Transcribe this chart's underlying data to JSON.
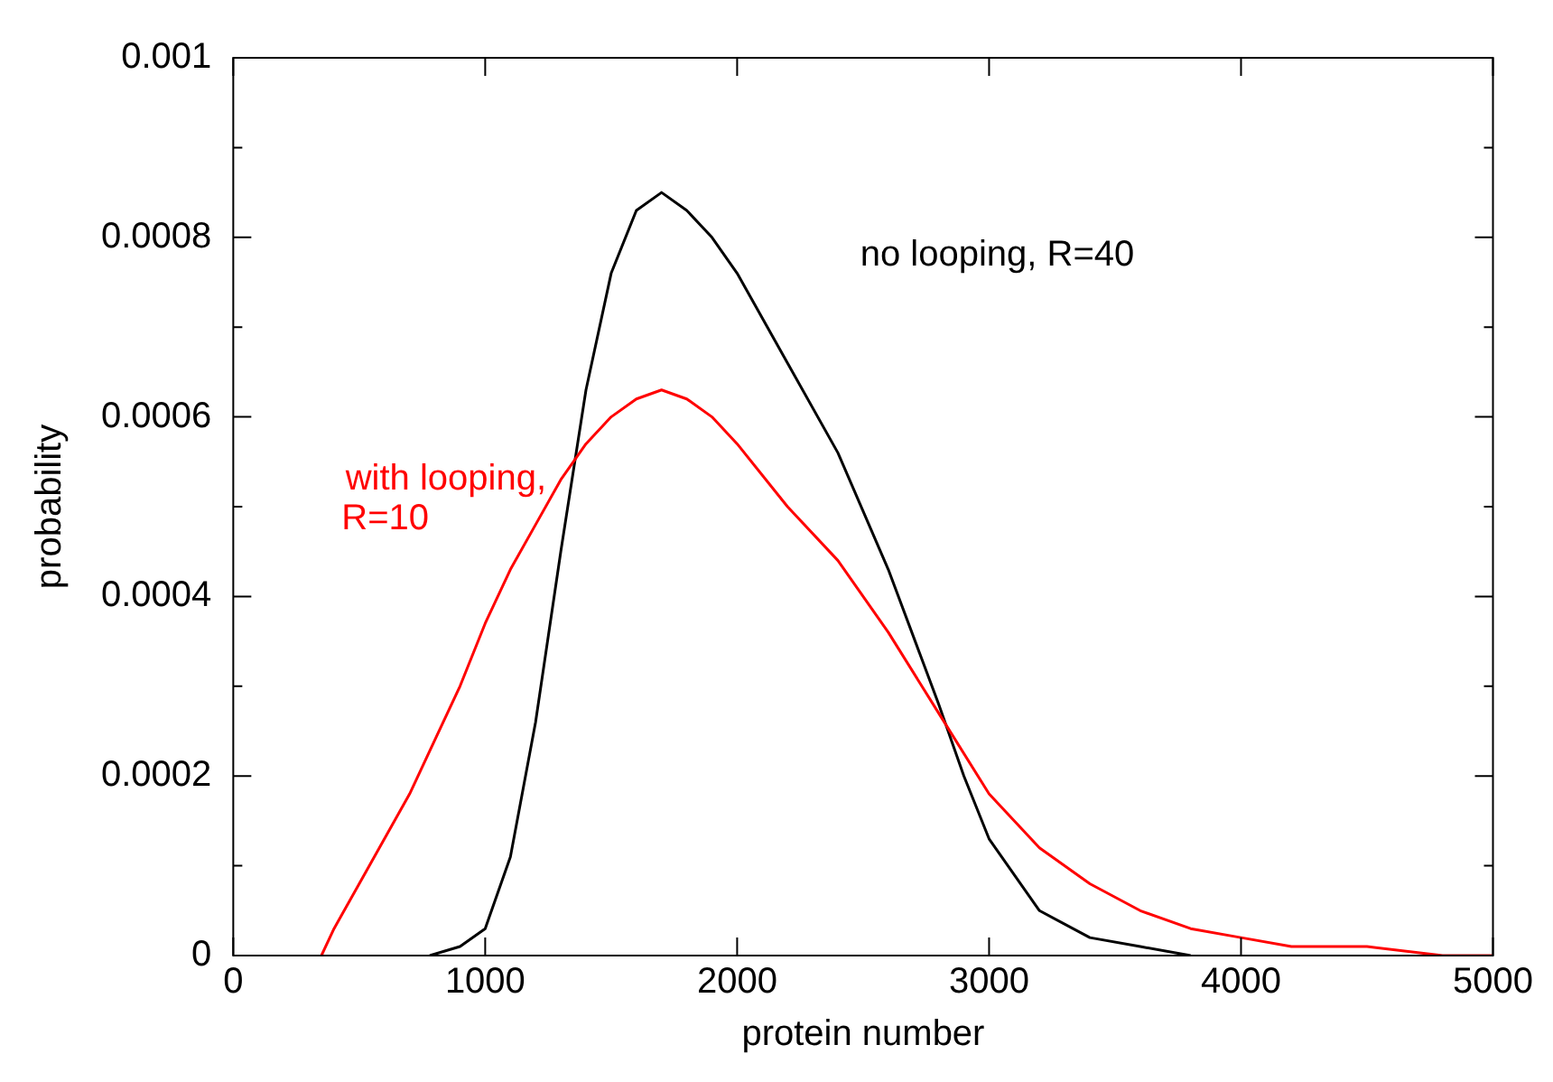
{
  "chart_data": {
    "type": "line",
    "xlabel": "protein number",
    "ylabel": "probability",
    "xlim": [
      0,
      5000
    ],
    "xticks": [
      0,
      1000,
      2000,
      3000,
      4000,
      5000
    ],
    "ylim": [
      0,
      0.001
    ],
    "yticks": [
      0,
      {
        "value": 0.0001,
        "label": null
      },
      0.0002,
      {
        "value": 0.0003,
        "label": null
      },
      0.0004,
      {
        "value": 0.0005,
        "label": null
      },
      0.0006,
      {
        "value": 0.0007,
        "label": null
      },
      0.0008,
      {
        "value": 0.0009,
        "label": null
      },
      0.001
    ],
    "grid": false,
    "legend": false,
    "marker": "none",
    "line_style": "solid",
    "series": [
      {
        "name": "with looping, R=10",
        "color": "#ff0000",
        "x": [
          350,
          400,
          500,
          600,
          700,
          800,
          900,
          1000,
          1100,
          1200,
          1300,
          1400,
          1500,
          1600,
          1700,
          1800,
          1900,
          2000,
          2200,
          2400,
          2600,
          2800,
          3000,
          3200,
          3400,
          3600,
          3800,
          4000,
          4200,
          4500,
          4800,
          5000
        ],
        "values": [
          0,
          3e-05,
          8e-05,
          0.00013,
          0.00018,
          0.00024,
          0.0003,
          0.00037,
          0.00043,
          0.00048,
          0.00053,
          0.00057,
          0.0006,
          0.00062,
          0.00063,
          0.00062,
          0.0006,
          0.00057,
          0.0005,
          0.00044,
          0.00036,
          0.00027,
          0.00018,
          0.00012,
          8e-05,
          5e-05,
          3e-05,
          2e-05,
          1e-05,
          1e-05,
          0,
          0
        ]
      },
      {
        "name": "no looping, R=40",
        "color": "#000000",
        "x": [
          780,
          900,
          1000,
          1100,
          1200,
          1300,
          1400,
          1500,
          1600,
          1700,
          1800,
          1900,
          2000,
          2200,
          2400,
          2600,
          2800,
          2900,
          3000,
          3200,
          3400,
          3600,
          3800
        ],
        "values": [
          0,
          1e-05,
          3e-05,
          0.00011,
          0.00026,
          0.00045,
          0.00063,
          0.00076,
          0.00083,
          0.00085,
          0.00083,
          0.0008,
          0.00076,
          0.00066,
          0.00056,
          0.00043,
          0.00028,
          0.0002,
          0.00013,
          5e-05,
          2e-05,
          1e-05,
          0
        ]
      }
    ]
  }
}
